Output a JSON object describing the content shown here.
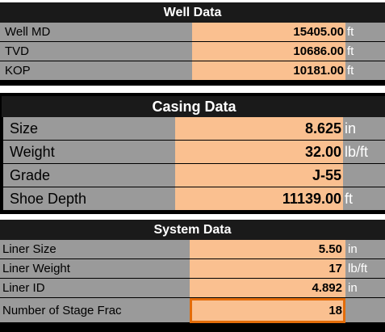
{
  "well_data": {
    "title": "Well Data",
    "rows": [
      {
        "label": "Well MD",
        "value": "15405.00",
        "unit": "ft"
      },
      {
        "label": "TVD",
        "value": "10686.00",
        "unit": "ft"
      },
      {
        "label": "KOP",
        "value": "10181.00",
        "unit": "ft"
      }
    ]
  },
  "casing_data": {
    "title": "Casing Data",
    "rows": [
      {
        "label": "Size",
        "value": "8.625",
        "unit": "in"
      },
      {
        "label": "Weight",
        "value": "32.00",
        "unit": "lb/ft"
      },
      {
        "label": "Grade",
        "value": "J-55",
        "unit": ""
      },
      {
        "label": "Shoe Depth",
        "value": "11139.00",
        "unit": "ft"
      }
    ]
  },
  "system_data": {
    "title": "System Data",
    "rows": [
      {
        "label": "Liner Size",
        "value": "5.50",
        "unit": "in"
      },
      {
        "label": "Liner Weight",
        "value": "17",
        "unit": "lb/ft"
      },
      {
        "label": "Liner ID",
        "value": "4.892",
        "unit": "in"
      },
      {
        "label": "Number of Stage Frac",
        "value": "18",
        "unit": ""
      }
    ]
  },
  "colors": {
    "label_bg": "#9a9a9a",
    "value_bg": "#fac090",
    "header_bg": "#1a1a1a",
    "selected_border": "#e36c0a"
  }
}
